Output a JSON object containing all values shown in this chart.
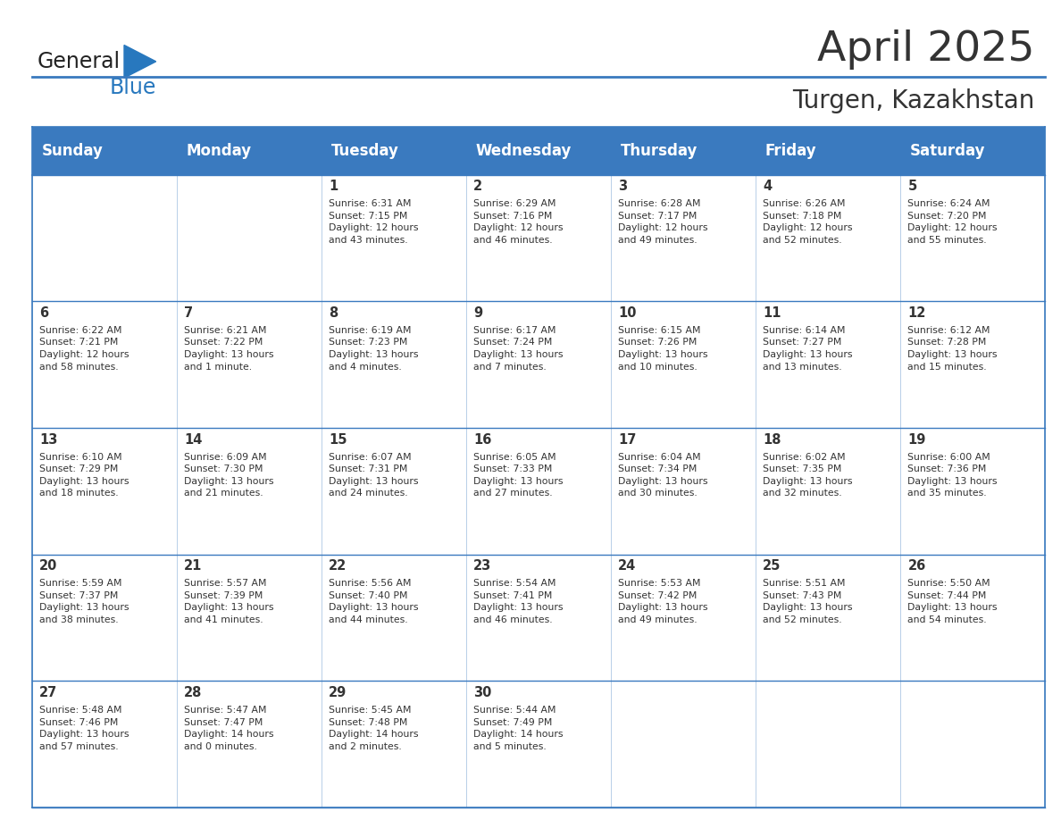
{
  "title": "April 2025",
  "subtitle": "Turgen, Kazakhstan",
  "header_bg": "#3a7abf",
  "header_text_color": "#ffffff",
  "days_of_week": [
    "Sunday",
    "Monday",
    "Tuesday",
    "Wednesday",
    "Thursday",
    "Friday",
    "Saturday"
  ],
  "weeks": [
    [
      {
        "day": "",
        "info": ""
      },
      {
        "day": "",
        "info": ""
      },
      {
        "day": "1",
        "info": "Sunrise: 6:31 AM\nSunset: 7:15 PM\nDaylight: 12 hours\nand 43 minutes."
      },
      {
        "day": "2",
        "info": "Sunrise: 6:29 AM\nSunset: 7:16 PM\nDaylight: 12 hours\nand 46 minutes."
      },
      {
        "day": "3",
        "info": "Sunrise: 6:28 AM\nSunset: 7:17 PM\nDaylight: 12 hours\nand 49 minutes."
      },
      {
        "day": "4",
        "info": "Sunrise: 6:26 AM\nSunset: 7:18 PM\nDaylight: 12 hours\nand 52 minutes."
      },
      {
        "day": "5",
        "info": "Sunrise: 6:24 AM\nSunset: 7:20 PM\nDaylight: 12 hours\nand 55 minutes."
      }
    ],
    [
      {
        "day": "6",
        "info": "Sunrise: 6:22 AM\nSunset: 7:21 PM\nDaylight: 12 hours\nand 58 minutes."
      },
      {
        "day": "7",
        "info": "Sunrise: 6:21 AM\nSunset: 7:22 PM\nDaylight: 13 hours\nand 1 minute."
      },
      {
        "day": "8",
        "info": "Sunrise: 6:19 AM\nSunset: 7:23 PM\nDaylight: 13 hours\nand 4 minutes."
      },
      {
        "day": "9",
        "info": "Sunrise: 6:17 AM\nSunset: 7:24 PM\nDaylight: 13 hours\nand 7 minutes."
      },
      {
        "day": "10",
        "info": "Sunrise: 6:15 AM\nSunset: 7:26 PM\nDaylight: 13 hours\nand 10 minutes."
      },
      {
        "day": "11",
        "info": "Sunrise: 6:14 AM\nSunset: 7:27 PM\nDaylight: 13 hours\nand 13 minutes."
      },
      {
        "day": "12",
        "info": "Sunrise: 6:12 AM\nSunset: 7:28 PM\nDaylight: 13 hours\nand 15 minutes."
      }
    ],
    [
      {
        "day": "13",
        "info": "Sunrise: 6:10 AM\nSunset: 7:29 PM\nDaylight: 13 hours\nand 18 minutes."
      },
      {
        "day": "14",
        "info": "Sunrise: 6:09 AM\nSunset: 7:30 PM\nDaylight: 13 hours\nand 21 minutes."
      },
      {
        "day": "15",
        "info": "Sunrise: 6:07 AM\nSunset: 7:31 PM\nDaylight: 13 hours\nand 24 minutes."
      },
      {
        "day": "16",
        "info": "Sunrise: 6:05 AM\nSunset: 7:33 PM\nDaylight: 13 hours\nand 27 minutes."
      },
      {
        "day": "17",
        "info": "Sunrise: 6:04 AM\nSunset: 7:34 PM\nDaylight: 13 hours\nand 30 minutes."
      },
      {
        "day": "18",
        "info": "Sunrise: 6:02 AM\nSunset: 7:35 PM\nDaylight: 13 hours\nand 32 minutes."
      },
      {
        "day": "19",
        "info": "Sunrise: 6:00 AM\nSunset: 7:36 PM\nDaylight: 13 hours\nand 35 minutes."
      }
    ],
    [
      {
        "day": "20",
        "info": "Sunrise: 5:59 AM\nSunset: 7:37 PM\nDaylight: 13 hours\nand 38 minutes."
      },
      {
        "day": "21",
        "info": "Sunrise: 5:57 AM\nSunset: 7:39 PM\nDaylight: 13 hours\nand 41 minutes."
      },
      {
        "day": "22",
        "info": "Sunrise: 5:56 AM\nSunset: 7:40 PM\nDaylight: 13 hours\nand 44 minutes."
      },
      {
        "day": "23",
        "info": "Sunrise: 5:54 AM\nSunset: 7:41 PM\nDaylight: 13 hours\nand 46 minutes."
      },
      {
        "day": "24",
        "info": "Sunrise: 5:53 AM\nSunset: 7:42 PM\nDaylight: 13 hours\nand 49 minutes."
      },
      {
        "day": "25",
        "info": "Sunrise: 5:51 AM\nSunset: 7:43 PM\nDaylight: 13 hours\nand 52 minutes."
      },
      {
        "day": "26",
        "info": "Sunrise: 5:50 AM\nSunset: 7:44 PM\nDaylight: 13 hours\nand 54 minutes."
      }
    ],
    [
      {
        "day": "27",
        "info": "Sunrise: 5:48 AM\nSunset: 7:46 PM\nDaylight: 13 hours\nand 57 minutes."
      },
      {
        "day": "28",
        "info": "Sunrise: 5:47 AM\nSunset: 7:47 PM\nDaylight: 14 hours\nand 0 minutes."
      },
      {
        "day": "29",
        "info": "Sunrise: 5:45 AM\nSunset: 7:48 PM\nDaylight: 14 hours\nand 2 minutes."
      },
      {
        "day": "30",
        "info": "Sunrise: 5:44 AM\nSunset: 7:49 PM\nDaylight: 14 hours\nand 5 minutes."
      },
      {
        "day": "",
        "info": ""
      },
      {
        "day": "",
        "info": ""
      },
      {
        "day": "",
        "info": ""
      }
    ]
  ],
  "logo_general_color": "#222222",
  "logo_blue_color": "#2878be",
  "border_color": "#3a7abf",
  "divider_color": "#3a7abf",
  "text_color": "#333333",
  "info_font_size": 7.8,
  "day_font_size": 10.5,
  "header_font_size": 12,
  "title_font_size": 34,
  "subtitle_font_size": 20
}
